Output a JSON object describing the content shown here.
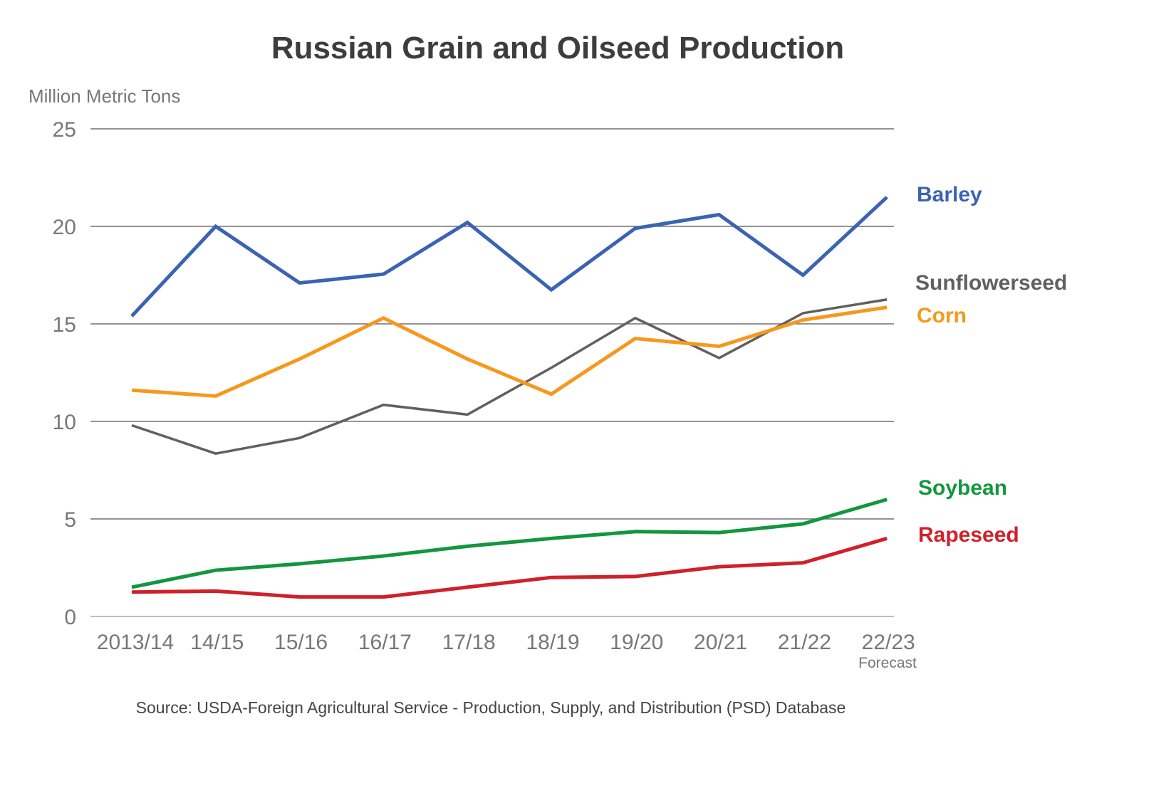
{
  "chart_data": {
    "type": "line",
    "title": "Russian Grain and Oilseed Production",
    "ylabel": "Million Metric Tons",
    "xlabel": "",
    "ylim": [
      0,
      25
    ],
    "yticks": [
      0,
      5,
      10,
      15,
      20,
      25
    ],
    "grid": true,
    "categories": [
      "2013/14",
      "14/15",
      "15/16",
      "16/17",
      "17/18",
      "18/19",
      "19/20",
      "20/21",
      "21/22",
      "22/23"
    ],
    "category_note": "Forecast",
    "legend_placement": "right (direct labels)",
    "series": [
      {
        "name": "Barley",
        "color": "#3b63b3",
        "values": [
          15.4,
          20.0,
          17.1,
          17.55,
          20.2,
          16.75,
          19.9,
          20.6,
          17.5,
          21.5
        ]
      },
      {
        "name": "Sunflowerseed",
        "color": "#606060",
        "values": [
          9.8,
          8.35,
          9.15,
          10.85,
          10.35,
          12.75,
          15.3,
          13.25,
          15.55,
          16.25
        ]
      },
      {
        "name": "Corn",
        "color": "#f7981d",
        "values": [
          11.6,
          11.3,
          13.2,
          15.3,
          13.2,
          11.4,
          14.25,
          13.85,
          15.2,
          15.85
        ]
      },
      {
        "name": "Soybean",
        "color": "#12963f",
        "values": [
          1.5,
          2.37,
          2.7,
          3.1,
          3.6,
          4.0,
          4.35,
          4.3,
          4.75,
          6.0
        ]
      },
      {
        "name": "Rapeseed",
        "color": "#d0202a",
        "values": [
          1.25,
          1.3,
          1.0,
          1.0,
          1.5,
          2.0,
          2.05,
          2.55,
          2.75,
          4.0
        ]
      }
    ],
    "source": "Source: USDA-Foreign Agricultural Service - Production, Supply, and Distribution (PSD) Database"
  }
}
